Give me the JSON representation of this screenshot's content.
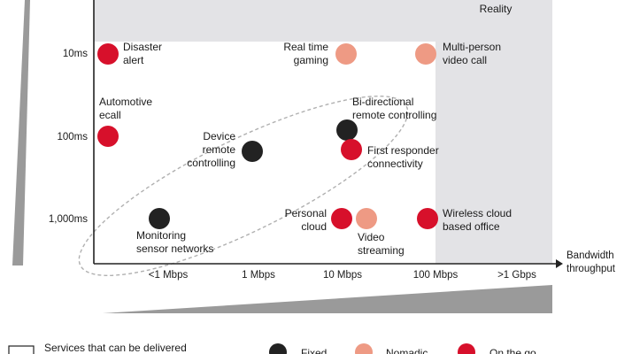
{
  "chart_data": {
    "type": "scatter",
    "xlabel": "Bandwidth\nthroughput",
    "x_ticks": [
      "<1 Mbps",
      "1 Mbps",
      "10 Mbps",
      "100 Mbps",
      ">1 Gbps"
    ],
    "y_ticks": [
      "10ms",
      "100ms",
      "1,000ms"
    ],
    "top_region_label": "Virtual\nReality",
    "colors": {
      "fixed": "#222222",
      "nomadic": "#ee9a84",
      "on_the_go": "#d7102b",
      "shade": "#e3e3e6",
      "wedge": "#9a9a9a"
    },
    "points": [
      {
        "label": "Disaster\nalert",
        "category": "on_the_go",
        "x": "<1 Mbps",
        "y": "10ms"
      },
      {
        "label": "Real time\ngaming",
        "category": "nomadic",
        "x": "10 Mbps",
        "y": "10ms"
      },
      {
        "label": "Multi-person\nvideo call",
        "category": "nomadic",
        "x": "100 Mbps",
        "y": "10ms"
      },
      {
        "label": "Automotive\necall",
        "category": "on_the_go",
        "x": "<1 Mbps",
        "y": "100ms"
      },
      {
        "label": "Device\nremote\ncontrolling",
        "category": "fixed",
        "x": "1 Mbps",
        "y": "100ms"
      },
      {
        "label": "Bi-directional\nremote controlling",
        "category": "fixed",
        "x": "10 Mbps",
        "y": "100ms"
      },
      {
        "label": "First responder\nconnectivity",
        "category": "on_the_go",
        "x": "10 Mbps",
        "y": "100ms"
      },
      {
        "label": "Monitoring\nsensor networks",
        "category": "fixed",
        "x": "<1 Mbps",
        "y": "1,000ms"
      },
      {
        "label": "Personal\ncloud",
        "category": "on_the_go",
        "x": "10 Mbps",
        "y": "1,000ms"
      },
      {
        "label": "Video\nstreaming",
        "category": "nomadic",
        "x": "10 Mbps",
        "y": "1,000ms"
      },
      {
        "label": "Wireless cloud\nbased office",
        "category": "on_the_go",
        "x": "100 Mbps",
        "y": "1,000ms"
      }
    ],
    "legend": {
      "box_label": "Services that can be delivered",
      "items": [
        {
          "category": "fixed",
          "label": "Fixed"
        },
        {
          "category": "nomadic",
          "label": "Nomadic"
        },
        {
          "category": "on_the_go",
          "label": "On the go"
        }
      ]
    }
  }
}
